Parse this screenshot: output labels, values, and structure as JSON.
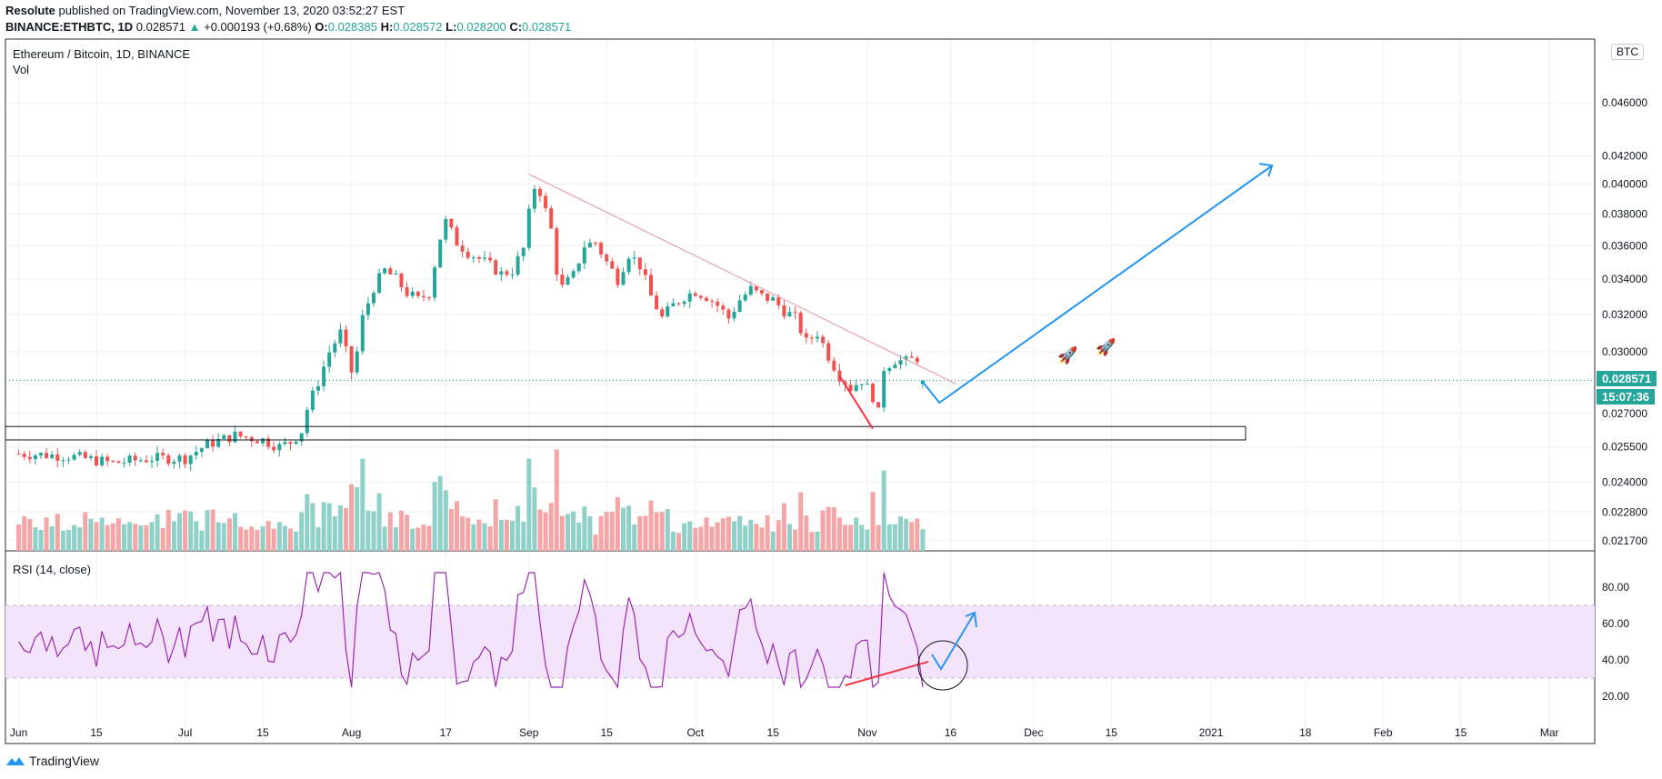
{
  "header": {
    "author": "Resolute",
    "published": "published on TradingView.com, November 13, 2020 03:52:27 EST",
    "symbol_line": "BINANCE:ETHBTC, 1D",
    "last": "0.028571",
    "change": "+0.000193 (+0.68%)",
    "open_label": "O:",
    "open": "0.028385",
    "high_label": "H:",
    "high": "0.028572",
    "low_label": "L:",
    "low": "0.028200",
    "close_label": "C:",
    "close": "0.028571"
  },
  "legend": {
    "title": "Ethereum / Bitcoin, 1D, BINANCE",
    "vol": "Vol",
    "rsi": "RSI (14, close)"
  },
  "currency_button": "BTC",
  "price_badge": "0.028571",
  "countdown_badge": "15:07:36",
  "footer_brand": "TradingView",
  "colors": {
    "up": "#26a69a",
    "down": "#ef5350",
    "vol_up": "#8fd0c8",
    "vol_down": "#f4a6a6",
    "rsi_line": "#9c27b0",
    "rsi_band": "#f3e3fb",
    "blue": "#2196f3",
    "trend": "#e8a0b0",
    "last_price": "#26a69a"
  },
  "chart_data": {
    "type": "candlestick",
    "title": "Ethereum / Bitcoin, 1D, BINANCE",
    "price_ticks": [
      "0.046000",
      "0.042000",
      "0.040000",
      "0.038000",
      "0.036000",
      "0.034000",
      "0.032000",
      "0.030000",
      "0.027000",
      "0.025500",
      "0.024000",
      "0.022800",
      "0.021700"
    ],
    "price_tick_values": [
      0.046,
      0.042,
      0.04,
      0.038,
      0.036,
      0.034,
      0.032,
      0.03,
      0.027,
      0.0255,
      0.024,
      0.0228,
      0.0217
    ],
    "x_ticks": [
      "Jun",
      "15",
      "Jul",
      "15",
      "Aug",
      "17",
      "Sep",
      "15",
      "Oct",
      "15",
      "Nov",
      "16",
      "Dec",
      "15",
      "2021",
      "18",
      "Feb",
      "15",
      "Mar"
    ],
    "x_tick_days": [
      -14,
      0,
      16,
      30,
      46,
      63,
      78,
      92,
      108,
      122,
      139,
      154,
      169,
      183,
      201,
      218,
      232,
      246,
      262
    ],
    "rsi_ticks": [
      "80.00",
      "60.00",
      "40.00",
      "20.00"
    ],
    "rsi_tick_values": [
      80,
      60,
      40,
      20
    ],
    "rsi_bands": [
      70,
      30
    ],
    "support_zone": [
      0.0258,
      0.0264
    ],
    "candles": [],
    "volume": [],
    "rsi": []
  }
}
